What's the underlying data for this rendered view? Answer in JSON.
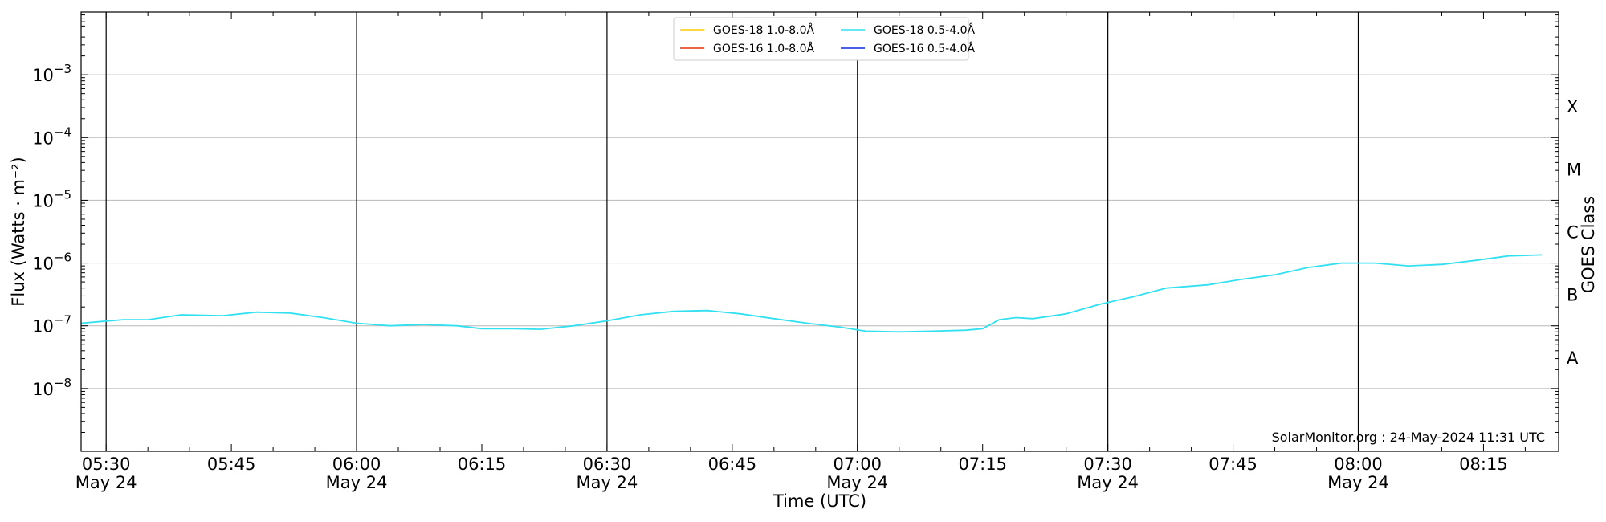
{
  "chart_data": {
    "type": "line",
    "xlabel": "Time (UTC)",
    "ylabel": "Flux (Watts · m⁻²)",
    "ylabel_right": "GOES Class",
    "y_scale": "log",
    "ylim": [
      1e-09,
      0.01
    ],
    "xlim": [
      "05:27",
      "08:24"
    ],
    "grid": "horizontal at decades",
    "legend_position": "top-center",
    "credit": "SolarMonitor.org : 24-May-2024 11:31 UTC",
    "x_ticks": [
      {
        "time": "05:30",
        "label": "05:30",
        "date": "May 24",
        "major": true
      },
      {
        "time": "05:45",
        "label": "05:45",
        "date": "",
        "major": false
      },
      {
        "time": "06:00",
        "label": "06:00",
        "date": "May 24",
        "major": true
      },
      {
        "time": "06:15",
        "label": "06:15",
        "date": "",
        "major": false
      },
      {
        "time": "06:30",
        "label": "06:30",
        "date": "May 24",
        "major": true
      },
      {
        "time": "06:45",
        "label": "06:45",
        "date": "",
        "major": false
      },
      {
        "time": "07:00",
        "label": "07:00",
        "date": "May 24",
        "major": true
      },
      {
        "time": "07:15",
        "label": "07:15",
        "date": "",
        "major": false
      },
      {
        "time": "07:30",
        "label": "07:30",
        "date": "May 24",
        "major": true
      },
      {
        "time": "07:45",
        "label": "07:45",
        "date": "",
        "major": false
      },
      {
        "time": "08:00",
        "label": "08:00",
        "date": "May 24",
        "major": true
      },
      {
        "time": "08:15",
        "label": "08:15",
        "date": "",
        "major": false
      }
    ],
    "y_ticks": [
      {
        "value": 1e-08,
        "base": "10",
        "exp": "−8"
      },
      {
        "value": 1e-07,
        "base": "10",
        "exp": "−7"
      },
      {
        "value": 1e-06,
        "base": "10",
        "exp": "−6"
      },
      {
        "value": 1e-05,
        "base": "10",
        "exp": "−5"
      },
      {
        "value": 0.0001,
        "base": "10",
        "exp": "−4"
      },
      {
        "value": 0.001,
        "base": "10",
        "exp": "−3"
      }
    ],
    "goes_classes": [
      {
        "label": "A",
        "value": 3.16e-08
      },
      {
        "label": "B",
        "value": 3.16e-07
      },
      {
        "label": "C",
        "value": 3.16e-06
      },
      {
        "label": "M",
        "value": 3.16e-05
      },
      {
        "label": "X",
        "value": 0.000316
      }
    ],
    "series": [
      {
        "name": "GOES-18 1.0-8.0Å",
        "color": "#ffcc00",
        "points": []
      },
      {
        "name": "GOES-18 0.5-4.0Å",
        "color": "#33e0f0",
        "points": [
          [
            "05:27",
            1.1e-07
          ],
          [
            "05:32",
            1.25e-07
          ],
          [
            "05:35",
            1.25e-07
          ],
          [
            "05:39",
            1.5e-07
          ],
          [
            "05:44",
            1.45e-07
          ],
          [
            "05:48",
            1.65e-07
          ],
          [
            "05:52",
            1.6e-07
          ],
          [
            "05:56",
            1.35e-07
          ],
          [
            "06:00",
            1.1e-07
          ],
          [
            "06:04",
            1e-07
          ],
          [
            "06:08",
            1.05e-07
          ],
          [
            "06:12",
            1e-07
          ],
          [
            "06:15",
            9e-08
          ],
          [
            "06:19",
            9e-08
          ],
          [
            "06:22",
            8.8e-08
          ],
          [
            "06:26",
            1e-07
          ],
          [
            "06:30",
            1.2e-07
          ],
          [
            "06:34",
            1.5e-07
          ],
          [
            "06:38",
            1.7e-07
          ],
          [
            "06:42",
            1.75e-07
          ],
          [
            "06:46",
            1.55e-07
          ],
          [
            "06:50",
            1.3e-07
          ],
          [
            "06:54",
            1.1e-07
          ],
          [
            "06:58",
            9.5e-08
          ],
          [
            "07:01",
            8.2e-08
          ],
          [
            "07:05",
            8e-08
          ],
          [
            "07:09",
            8.2e-08
          ],
          [
            "07:13",
            8.5e-08
          ],
          [
            "07:15",
            9e-08
          ],
          [
            "07:17",
            1.25e-07
          ],
          [
            "07:19",
            1.35e-07
          ],
          [
            "07:21",
            1.3e-07
          ],
          [
            "07:25",
            1.55e-07
          ],
          [
            "07:29",
            2.2e-07
          ],
          [
            "07:33",
            2.9e-07
          ],
          [
            "07:37",
            4e-07
          ],
          [
            "07:42",
            4.5e-07
          ],
          [
            "07:46",
            5.5e-07
          ],
          [
            "07:50",
            6.5e-07
          ],
          [
            "07:54",
            8.5e-07
          ],
          [
            "07:58",
            1e-06
          ],
          [
            "08:02",
            1e-06
          ],
          [
            "08:06",
            9e-07
          ],
          [
            "08:10",
            9.5e-07
          ],
          [
            "08:14",
            1.1e-06
          ],
          [
            "08:18",
            1.3e-06
          ],
          [
            "08:22",
            1.35e-06
          ]
        ]
      },
      {
        "name": "GOES-16 1.0-8.0Å",
        "color": "#e8300a",
        "points": []
      },
      {
        "name": "GOES-16 0.5-4.0Å",
        "color": "#0a28e0",
        "points": []
      }
    ]
  }
}
